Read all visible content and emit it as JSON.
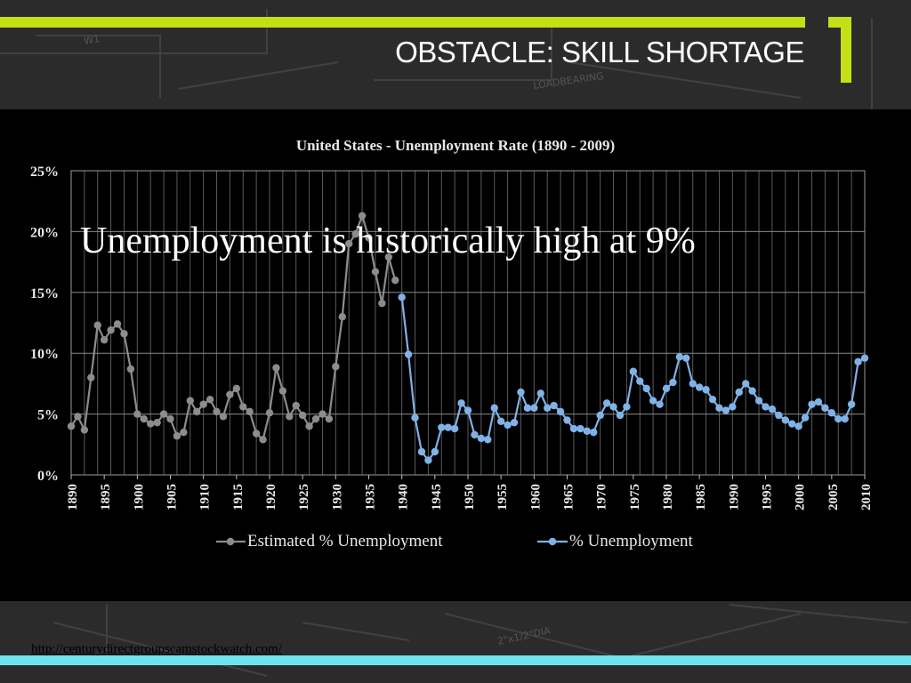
{
  "slide": {
    "title": "OBSTACLE: SKILL SHORTAGE",
    "headline": "Unemployment is historically high at 9%",
    "source_url": "http://centurydirectgroupscamstockwatch.com/"
  },
  "colors": {
    "accent_green": "#c4e014",
    "accent_cyan": "#6fe3ee",
    "estimated_series": "#8c8c8c",
    "actual_series": "#7fb2e6"
  },
  "chart_data": {
    "type": "line",
    "title": "United States - Unemployment Rate (1890 - 2009)",
    "xlabel": "",
    "ylabel": "",
    "xlim": [
      1890,
      2010
    ],
    "ylim": [
      0,
      25
    ],
    "x_ticks": [
      "1890",
      "1895",
      "1900",
      "1905",
      "1910",
      "1915",
      "1920",
      "1925",
      "1930",
      "1935",
      "1940",
      "1945",
      "1950",
      "1955",
      "1960",
      "1965",
      "1970",
      "1975",
      "1980",
      "1985",
      "1990",
      "1995",
      "2000",
      "2005",
      "2010"
    ],
    "y_ticks": [
      "0%",
      "5%",
      "10%",
      "15%",
      "20%",
      "25%"
    ],
    "grid": true,
    "legend_position": "bottom",
    "series": [
      {
        "name": "Estimated % Unemployment",
        "color": "#8c8c8c",
        "x": [
          1890,
          1891,
          1892,
          1893,
          1894,
          1895,
          1896,
          1897,
          1898,
          1899,
          1900,
          1901,
          1902,
          1903,
          1904,
          1905,
          1906,
          1907,
          1908,
          1909,
          1910,
          1911,
          1912,
          1913,
          1914,
          1915,
          1916,
          1917,
          1918,
          1919,
          1920,
          1921,
          1922,
          1923,
          1924,
          1925,
          1926,
          1927,
          1928,
          1929,
          1930,
          1931,
          1932,
          1933,
          1934,
          1935,
          1936,
          1937,
          1938,
          1939
        ],
        "values": [
          4.0,
          4.8,
          3.7,
          8.0,
          12.3,
          11.1,
          11.9,
          12.4,
          11.6,
          8.7,
          5.0,
          4.6,
          4.2,
          4.3,
          5.0,
          4.6,
          3.2,
          3.5,
          6.1,
          5.2,
          5.8,
          6.2,
          5.2,
          4.8,
          6.6,
          7.1,
          5.6,
          5.2,
          3.4,
          2.9,
          5.1,
          8.8,
          6.9,
          4.8,
          5.7,
          4.9,
          4.0,
          4.6,
          5.0,
          4.6,
          8.9,
          13.0,
          19.0,
          19.8,
          21.3,
          19.5,
          16.7,
          14.1,
          17.9,
          16.0
        ]
      },
      {
        "name": "% Unemployment",
        "color": "#7fb2e6",
        "x": [
          1940,
          1941,
          1942,
          1943,
          1944,
          1945,
          1946,
          1947,
          1948,
          1949,
          1950,
          1951,
          1952,
          1953,
          1954,
          1955,
          1956,
          1957,
          1958,
          1959,
          1960,
          1961,
          1962,
          1963,
          1964,
          1965,
          1966,
          1967,
          1968,
          1969,
          1970,
          1971,
          1972,
          1973,
          1974,
          1975,
          1976,
          1977,
          1978,
          1979,
          1980,
          1981,
          1982,
          1983,
          1984,
          1985,
          1986,
          1987,
          1988,
          1989,
          1990,
          1991,
          1992,
          1993,
          1994,
          1995,
          1996,
          1997,
          1998,
          1999,
          2000,
          2001,
          2002,
          2003,
          2004,
          2005,
          2006,
          2007,
          2008,
          2009,
          2010
        ],
        "values": [
          14.6,
          9.9,
          4.7,
          1.9,
          1.2,
          1.9,
          3.9,
          3.9,
          3.8,
          5.9,
          5.3,
          3.3,
          3.0,
          2.9,
          5.5,
          4.4,
          4.1,
          4.3,
          6.8,
          5.5,
          5.5,
          6.7,
          5.5,
          5.7,
          5.2,
          4.5,
          3.8,
          3.8,
          3.6,
          3.5,
          4.9,
          5.9,
          5.6,
          4.9,
          5.6,
          8.5,
          7.7,
          7.1,
          6.1,
          5.8,
          7.1,
          7.6,
          9.7,
          9.6,
          7.5,
          7.2,
          7.0,
          6.2,
          5.5,
          5.3,
          5.6,
          6.8,
          7.5,
          6.9,
          6.1,
          5.6,
          5.4,
          4.9,
          4.5,
          4.2,
          4.0,
          4.7,
          5.8,
          6.0,
          5.5,
          5.1,
          4.6,
          4.6,
          5.8,
          9.3,
          9.6
        ]
      }
    ]
  }
}
